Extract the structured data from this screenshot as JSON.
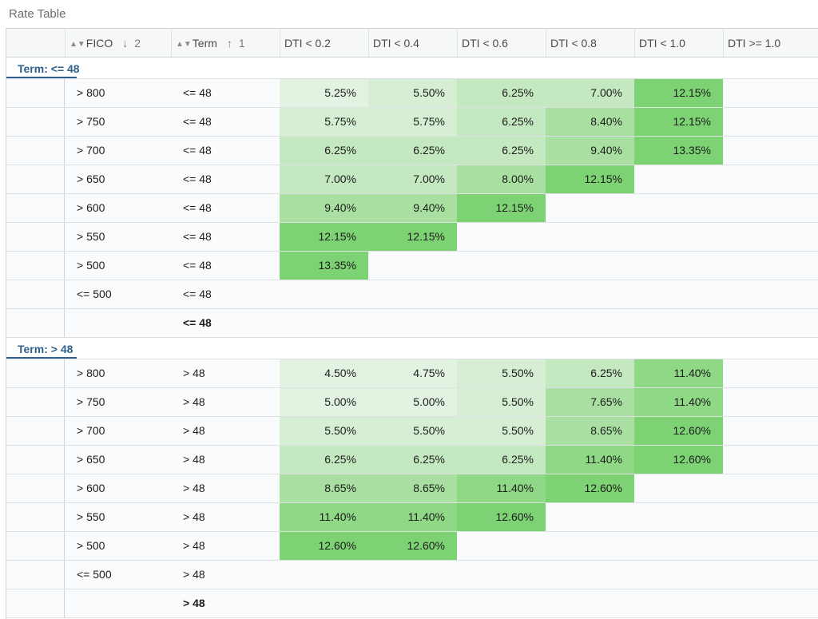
{
  "title": "Rate Table",
  "header": {
    "fico_label": "FICO",
    "fico_arrow": "↓",
    "fico_index": "2",
    "term_label": "Term",
    "term_arrow": "↑",
    "term_index": "1",
    "dti": [
      "DTI < 0.2",
      "DTI < 0.4",
      "DTI < 0.6",
      "DTI < 0.8",
      "DTI < 1.0",
      "DTI >= 1.0"
    ]
  },
  "colors": {
    "shade1": "#e3f3e2",
    "shade2": "#d6eed3",
    "shade3": "#c4e8bf",
    "shade4": "#a9e0a2",
    "shade5": "#8fd886",
    "shade6": "#7dd274"
  },
  "groups": [
    {
      "label": "Term: <= 48",
      "rows": [
        {
          "fico": "> 800",
          "term": "<= 48",
          "rates": [
            "5.25%",
            "5.50%",
            "6.25%",
            "7.00%",
            "12.15%",
            ""
          ]
        },
        {
          "fico": "> 750",
          "term": "<= 48",
          "rates": [
            "5.75%",
            "5.75%",
            "6.25%",
            "8.40%",
            "12.15%",
            ""
          ]
        },
        {
          "fico": "> 700",
          "term": "<= 48",
          "rates": [
            "6.25%",
            "6.25%",
            "6.25%",
            "9.40%",
            "13.35%",
            ""
          ]
        },
        {
          "fico": "> 650",
          "term": "<= 48",
          "rates": [
            "7.00%",
            "7.00%",
            "8.00%",
            "12.15%",
            "",
            ""
          ]
        },
        {
          "fico": "> 600",
          "term": "<= 48",
          "rates": [
            "9.40%",
            "9.40%",
            "12.15%",
            "",
            "",
            ""
          ]
        },
        {
          "fico": "> 550",
          "term": "<= 48",
          "rates": [
            "12.15%",
            "12.15%",
            "",
            "",
            "",
            ""
          ]
        },
        {
          "fico": "> 500",
          "term": "<= 48",
          "rates": [
            "13.35%",
            "",
            "",
            "",
            "",
            ""
          ]
        },
        {
          "fico": "<= 500",
          "term": "<= 48",
          "rates": [
            "",
            "",
            "",
            "",
            "",
            ""
          ]
        }
      ],
      "subtotal": "<= 48"
    },
    {
      "label": "Term: > 48",
      "rows": [
        {
          "fico": "> 800",
          "term": "> 48",
          "rates": [
            "4.50%",
            "4.75%",
            "5.50%",
            "6.25%",
            "11.40%",
            ""
          ]
        },
        {
          "fico": "> 750",
          "term": "> 48",
          "rates": [
            "5.00%",
            "5.00%",
            "5.50%",
            "7.65%",
            "11.40%",
            ""
          ]
        },
        {
          "fico": "> 700",
          "term": "> 48",
          "rates": [
            "5.50%",
            "5.50%",
            "5.50%",
            "8.65%",
            "12.60%",
            ""
          ]
        },
        {
          "fico": "> 650",
          "term": "> 48",
          "rates": [
            "6.25%",
            "6.25%",
            "6.25%",
            "11.40%",
            "12.60%",
            ""
          ]
        },
        {
          "fico": "> 600",
          "term": "> 48",
          "rates": [
            "8.65%",
            "8.65%",
            "11.40%",
            "12.60%",
            "",
            ""
          ]
        },
        {
          "fico": "> 550",
          "term": "> 48",
          "rates": [
            "11.40%",
            "11.40%",
            "12.60%",
            "",
            "",
            ""
          ]
        },
        {
          "fico": "> 500",
          "term": "> 48",
          "rates": [
            "12.60%",
            "12.60%",
            "",
            "",
            "",
            ""
          ]
        },
        {
          "fico": "<= 500",
          "term": "> 48",
          "rates": [
            "",
            "",
            "",
            "",
            "",
            ""
          ]
        }
      ],
      "subtotal": "> 48"
    }
  ]
}
